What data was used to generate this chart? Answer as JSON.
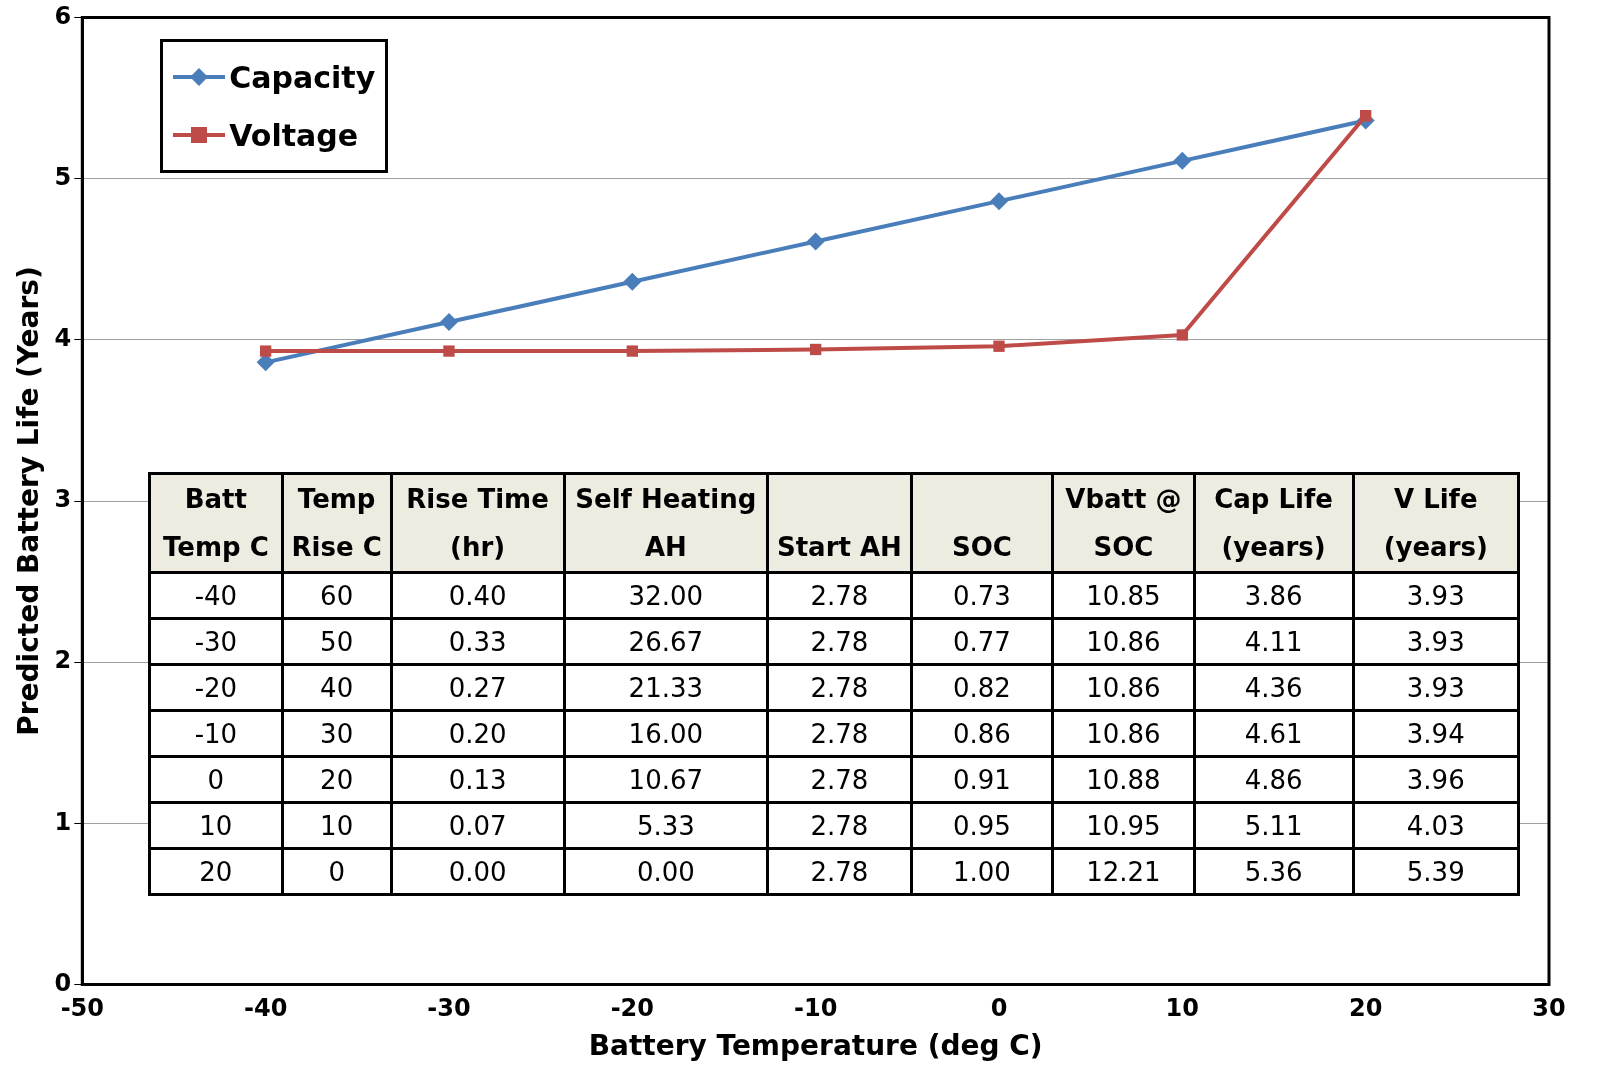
{
  "chart_data": {
    "type": "line",
    "xlabel": "Battery Temperature (deg C)",
    "ylabel": "Predicted Battery Life (Years)",
    "x": [
      -40,
      -30,
      -20,
      -10,
      0,
      10,
      20
    ],
    "series": [
      {
        "name": "Capacity",
        "color": "#4a7ebb",
        "marker": "diamond",
        "values": [
          3.86,
          4.11,
          4.36,
          4.61,
          4.86,
          5.11,
          5.36
        ]
      },
      {
        "name": "Voltage",
        "color": "#be4b48",
        "marker": "square",
        "values": [
          3.93,
          3.93,
          3.93,
          3.94,
          3.96,
          4.03,
          5.39
        ]
      }
    ],
    "xlim": [
      -50,
      30
    ],
    "xticks": [
      -50,
      -40,
      -30,
      -20,
      -10,
      0,
      10,
      20,
      30
    ],
    "ylim": [
      0,
      6
    ],
    "yticks": [
      0,
      1,
      2,
      3,
      4,
      5,
      6
    ],
    "grid": "y",
    "legend": "top left",
    "line_style": "solid",
    "annotations": [
      "Batt\nTemp C",
      "Temp\nRise C",
      "Rise Time\n(hr)",
      "Self Heating\nAH",
      "Start AH",
      "SOC",
      "Vbatt @\nSOC",
      "Cap Life\n(years)",
      "V Life\n(years)",
      "-40",
      "60",
      "0.40",
      "32.00",
      "2.78",
      "0.73",
      "10.85",
      "3.86",
      "3.93",
      "-30",
      "50",
      "0.33",
      "26.67",
      "2.78",
      "0.77",
      "10.86",
      "4.11",
      "3.93",
      "-20",
      "40",
      "0.27",
      "21.33",
      "2.78",
      "0.82",
      "10.86",
      "4.36",
      "3.93",
      "-10",
      "30",
      "0.20",
      "16.00",
      "2.78",
      "0.86",
      "10.86",
      "4.61",
      "3.94",
      "0",
      "20",
      "0.13",
      "10.67",
      "2.78",
      "0.91",
      "10.88",
      "4.86",
      "3.96",
      "10",
      "10",
      "0.07",
      "5.33",
      "2.78",
      "0.95",
      "10.95",
      "5.11",
      "4.03",
      "20",
      "0",
      "0.00",
      "0.00",
      "2.78",
      "1.00",
      "12.21",
      "5.36",
      "5.39"
    ]
  }
}
